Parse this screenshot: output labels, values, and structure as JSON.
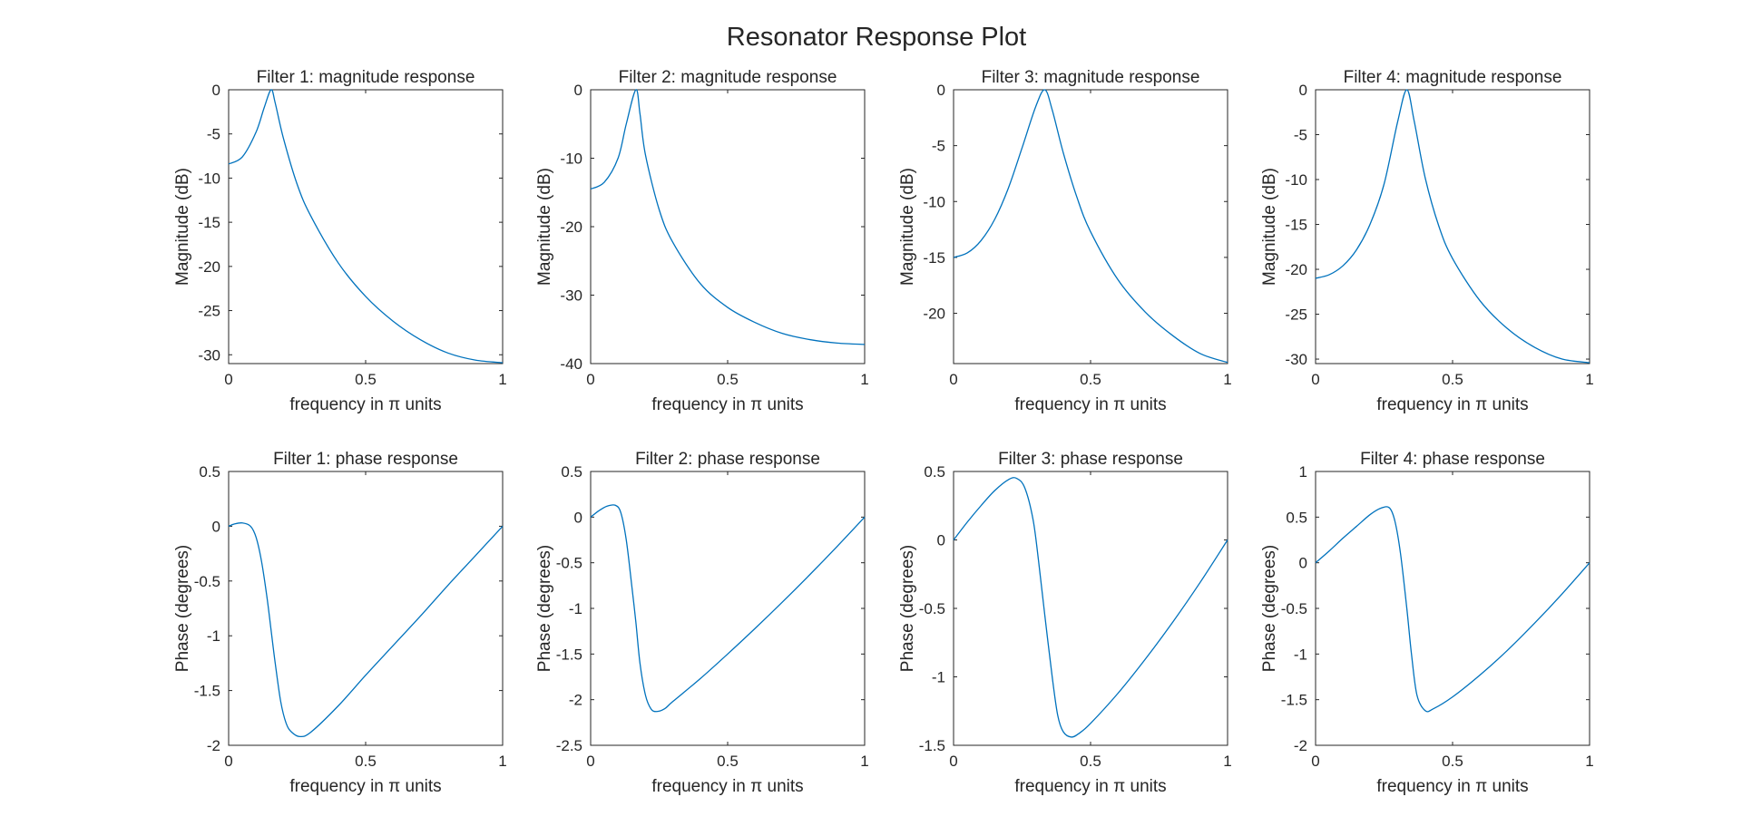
{
  "figure": {
    "title": "Resonator Response Plot",
    "line_color": "#0072BD",
    "axis_color": "#262626"
  },
  "chart_data": [
    {
      "type": "line",
      "title": "Filter 1: magnitude response",
      "xlabel": "frequency in π units",
      "ylabel": "Magnitude (dB)",
      "xlim": [
        0,
        1
      ],
      "ylim": [
        -31,
        0
      ],
      "xticks": [
        0,
        0.5,
        1
      ],
      "yticks": [
        -30,
        -25,
        -20,
        -15,
        -10,
        -5,
        0
      ],
      "grid": false,
      "series": [
        {
          "x": [
            0,
            0.05,
            0.1,
            0.13,
            0.155,
            0.17,
            0.2,
            0.25,
            0.3,
            0.4,
            0.5,
            0.6,
            0.7,
            0.8,
            0.9,
            1.0
          ],
          "y": [
            -8.4,
            -7.6,
            -4.8,
            -2.0,
            0,
            -1.5,
            -5.5,
            -10.7,
            -14.3,
            -19.6,
            -23.4,
            -26.2,
            -28.3,
            -29.8,
            -30.6,
            -30.9
          ]
        }
      ]
    },
    {
      "type": "line",
      "title": "Filter 2: magnitude response",
      "xlabel": "frequency in π units",
      "ylabel": "Magnitude (dB)",
      "xlim": [
        0,
        1
      ],
      "ylim": [
        -40,
        0
      ],
      "xticks": [
        0,
        0.5,
        1
      ],
      "yticks": [
        -40,
        -30,
        -20,
        -10,
        0
      ],
      "grid": false,
      "series": [
        {
          "x": [
            0,
            0.05,
            0.1,
            0.13,
            0.165,
            0.18,
            0.2,
            0.25,
            0.3,
            0.4,
            0.5,
            0.6,
            0.7,
            0.8,
            0.9,
            1.0
          ],
          "y": [
            -14.5,
            -13.5,
            -10.0,
            -5.0,
            0,
            -3.5,
            -9.5,
            -17.5,
            -22.3,
            -28.3,
            -31.8,
            -34.0,
            -35.6,
            -36.5,
            -37.0,
            -37.2
          ]
        }
      ]
    },
    {
      "type": "line",
      "title": "Filter 3: magnitude response",
      "xlabel": "frequency in π units",
      "ylabel": "Magnitude (dB)",
      "xlim": [
        0,
        1
      ],
      "ylim": [
        -24.5,
        0
      ],
      "xticks": [
        0,
        0.5,
        1
      ],
      "yticks": [
        -20,
        -15,
        -10,
        -5,
        0
      ],
      "grid": false,
      "series": [
        {
          "x": [
            0,
            0.05,
            0.1,
            0.15,
            0.2,
            0.25,
            0.3,
            0.333,
            0.36,
            0.4,
            0.45,
            0.5,
            0.6,
            0.7,
            0.8,
            0.9,
            1.0
          ],
          "y": [
            -15.0,
            -14.6,
            -13.5,
            -11.6,
            -8.8,
            -5.2,
            -1.5,
            0,
            -1.8,
            -5.6,
            -9.6,
            -12.7,
            -17.0,
            -19.9,
            -22.0,
            -23.6,
            -24.4
          ]
        }
      ]
    },
    {
      "type": "line",
      "title": "Filter 4: magnitude response",
      "xlabel": "frequency in π units",
      "ylabel": "Magnitude (dB)",
      "xlim": [
        0,
        1
      ],
      "ylim": [
        -30.5,
        0
      ],
      "xticks": [
        0,
        0.5,
        1
      ],
      "yticks": [
        -30,
        -25,
        -20,
        -15,
        -10,
        -5,
        0
      ],
      "grid": false,
      "series": [
        {
          "x": [
            0,
            0.05,
            0.1,
            0.15,
            0.2,
            0.25,
            0.3,
            0.333,
            0.36,
            0.4,
            0.45,
            0.5,
            0.6,
            0.7,
            0.8,
            0.9,
            1.0
          ],
          "y": [
            -21.0,
            -20.6,
            -19.6,
            -17.8,
            -14.9,
            -10.5,
            -3.5,
            0,
            -3.5,
            -9.8,
            -15.2,
            -18.8,
            -23.5,
            -26.6,
            -28.7,
            -30.0,
            -30.4
          ]
        }
      ]
    },
    {
      "type": "line",
      "title": "Filter 1: phase response",
      "xlabel": "frequency in π units",
      "ylabel": "Phase (degrees)",
      "xlim": [
        0,
        1
      ],
      "ylim": [
        -2,
        0.5
      ],
      "xticks": [
        0,
        0.5,
        1
      ],
      "yticks": [
        -2,
        -1.5,
        -1,
        -0.5,
        0,
        0.5
      ],
      "grid": false,
      "series": [
        {
          "x": [
            0,
            0.02,
            0.05,
            0.08,
            0.1,
            0.12,
            0.14,
            0.155,
            0.17,
            0.19,
            0.21,
            0.23,
            0.26,
            0.3,
            0.4,
            0.5,
            0.6,
            0.7,
            0.8,
            0.9,
            1.0
          ],
          "y": [
            0,
            0.02,
            0.03,
            0.0,
            -0.1,
            -0.32,
            -0.65,
            -0.95,
            -1.25,
            -1.6,
            -1.8,
            -1.88,
            -1.92,
            -1.88,
            -1.64,
            -1.36,
            -1.09,
            -0.82,
            -0.54,
            -0.27,
            0
          ]
        }
      ]
    },
    {
      "type": "line",
      "title": "Filter 2: phase response",
      "xlabel": "frequency in π units",
      "ylabel": "Phase (degrees)",
      "xlim": [
        0,
        1
      ],
      "ylim": [
        -2.5,
        0.5
      ],
      "xticks": [
        0,
        0.5,
        1
      ],
      "yticks": [
        -2.5,
        -2,
        -1.5,
        -1,
        -0.5,
        0,
        0.5
      ],
      "grid": false,
      "series": [
        {
          "x": [
            0,
            0.03,
            0.06,
            0.09,
            0.11,
            0.13,
            0.15,
            0.165,
            0.18,
            0.2,
            0.22,
            0.24,
            0.27,
            0.3,
            0.4,
            0.5,
            0.6,
            0.7,
            0.8,
            0.9,
            1.0
          ],
          "y": [
            0,
            0.07,
            0.12,
            0.13,
            0.05,
            -0.25,
            -0.75,
            -1.15,
            -1.6,
            -1.95,
            -2.1,
            -2.13,
            -2.1,
            -2.02,
            -1.77,
            -1.5,
            -1.22,
            -0.93,
            -0.63,
            -0.32,
            0
          ]
        }
      ]
    },
    {
      "type": "line",
      "title": "Filter 3: phase response",
      "xlabel": "frequency in π units",
      "ylabel": "Phase (degrees)",
      "xlim": [
        0,
        1
      ],
      "ylim": [
        -1.5,
        0.5
      ],
      "xticks": [
        0,
        0.5,
        1
      ],
      "yticks": [
        -1.5,
        -1,
        -0.5,
        0,
        0.5
      ],
      "grid": false,
      "series": [
        {
          "x": [
            0,
            0.05,
            0.1,
            0.15,
            0.2,
            0.23,
            0.26,
            0.29,
            0.31,
            0.333,
            0.36,
            0.38,
            0.4,
            0.43,
            0.46,
            0.5,
            0.6,
            0.7,
            0.8,
            0.9,
            1.0
          ],
          "y": [
            0,
            0.13,
            0.25,
            0.36,
            0.44,
            0.45,
            0.38,
            0.15,
            -0.15,
            -0.55,
            -1.0,
            -1.28,
            -1.4,
            -1.44,
            -1.41,
            -1.34,
            -1.12,
            -0.87,
            -0.6,
            -0.31,
            0
          ]
        }
      ]
    },
    {
      "type": "line",
      "title": "Filter 4: phase response",
      "xlabel": "frequency in π units",
      "ylabel": "Phase (degrees)",
      "xlim": [
        0,
        1
      ],
      "ylim": [
        -2,
        1
      ],
      "xticks": [
        0,
        0.5,
        1
      ],
      "yticks": [
        -2,
        -1.5,
        -1,
        -0.5,
        0,
        0.5,
        1
      ],
      "grid": false,
      "series": [
        {
          "x": [
            0,
            0.05,
            0.1,
            0.15,
            0.2,
            0.24,
            0.27,
            0.29,
            0.31,
            0.333,
            0.35,
            0.37,
            0.4,
            0.43,
            0.5,
            0.6,
            0.7,
            0.8,
            0.9,
            1.0
          ],
          "y": [
            0,
            0.13,
            0.27,
            0.4,
            0.53,
            0.6,
            0.6,
            0.45,
            0.1,
            -0.5,
            -1.0,
            -1.45,
            -1.62,
            -1.6,
            -1.47,
            -1.23,
            -0.96,
            -0.66,
            -0.34,
            0
          ]
        }
      ]
    }
  ]
}
